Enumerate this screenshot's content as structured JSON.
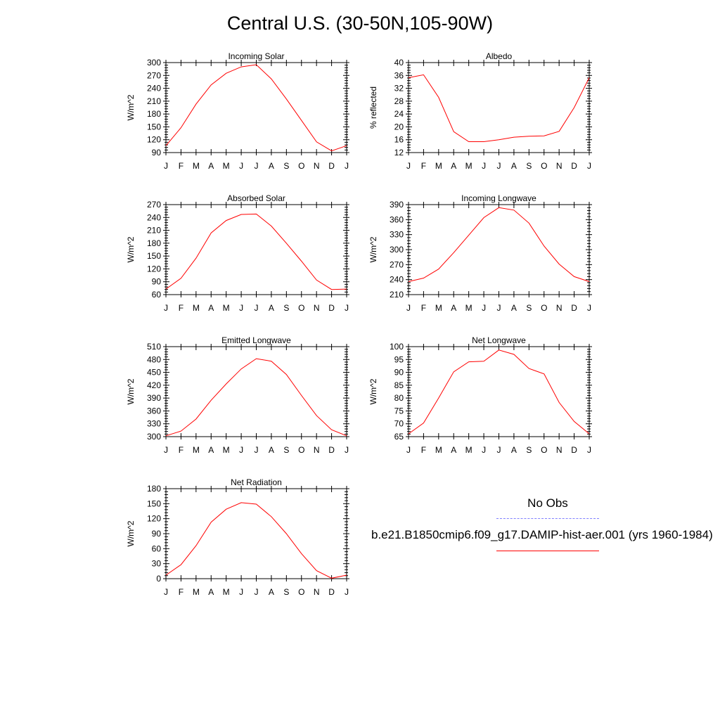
{
  "page": {
    "title": "Central U.S. (30-50N,105-90W)"
  },
  "legend": {
    "obs_label": "No Obs",
    "model_label": "b.e21.B1850cmip6.f09_g17.DAMIP-hist-aer.001 (yrs 1960-1984)",
    "obs_color": "#8080ff",
    "model_color": "#ff0000"
  },
  "colors": {
    "series": "#ff0000",
    "axes": "#000000"
  },
  "months": [
    "J",
    "F",
    "M",
    "A",
    "M",
    "J",
    "J",
    "A",
    "S",
    "O",
    "N",
    "D",
    "J"
  ],
  "chart_data": [
    {
      "type": "line",
      "title": "Incoming Solar",
      "ylabel": "W/m^2",
      "ylim": [
        90,
        300
      ],
      "yticks": [
        90,
        120,
        150,
        180,
        210,
        240,
        270,
        300
      ],
      "x": [
        "J",
        "F",
        "M",
        "A",
        "M",
        "J",
        "J",
        "A",
        "S",
        "O",
        "N",
        "D",
        "J"
      ],
      "series": [
        {
          "values": [
            106,
            148,
            203,
            248,
            275,
            290,
            295,
            262,
            215,
            165,
            115,
            94,
            106
          ]
        }
      ]
    },
    {
      "type": "line",
      "title": "Albedo",
      "ylabel": "% reflected",
      "ylim": [
        12,
        40
      ],
      "yticks": [
        12,
        16,
        20,
        24,
        28,
        32,
        36,
        40
      ],
      "x": [
        "J",
        "F",
        "M",
        "A",
        "M",
        "J",
        "J",
        "A",
        "S",
        "O",
        "N",
        "D",
        "J"
      ],
      "series": [
        {
          "values": [
            35.3,
            36.2,
            29.2,
            18.5,
            15.4,
            15.4,
            16.0,
            16.8,
            17.1,
            17.2,
            18.6,
            26.0,
            35.3
          ]
        }
      ]
    },
    {
      "type": "line",
      "title": "Absorbed Solar",
      "ylabel": "W/m^2",
      "ylim": [
        60,
        270
      ],
      "yticks": [
        60,
        90,
        120,
        150,
        180,
        210,
        240,
        270
      ],
      "x": [
        "J",
        "F",
        "M",
        "A",
        "M",
        "J",
        "J",
        "A",
        "S",
        "O",
        "N",
        "D",
        "J"
      ],
      "series": [
        {
          "values": [
            73,
            98,
            145,
            204,
            233,
            247,
            248,
            220,
            180,
            138,
            94,
            72,
            73
          ]
        }
      ]
    },
    {
      "type": "line",
      "title": "Incoming Longwave",
      "ylabel": "W/m^2",
      "ylim": [
        210,
        390
      ],
      "yticks": [
        210,
        240,
        270,
        300,
        330,
        360,
        390
      ],
      "x": [
        "J",
        "F",
        "M",
        "A",
        "M",
        "J",
        "J",
        "A",
        "S",
        "O",
        "N",
        "D",
        "J"
      ],
      "series": [
        {
          "values": [
            236,
            243,
            261,
            294,
            329,
            364,
            384,
            379,
            353,
            307,
            271,
            246,
            236
          ]
        }
      ]
    },
    {
      "type": "line",
      "title": "Emitted Longwave",
      "ylabel": "W/m^2",
      "ylim": [
        300,
        510
      ],
      "yticks": [
        300,
        330,
        360,
        390,
        420,
        450,
        480,
        510
      ],
      "x": [
        "J",
        "F",
        "M",
        "A",
        "M",
        "J",
        "J",
        "A",
        "S",
        "O",
        "N",
        "D",
        "J"
      ],
      "series": [
        {
          "values": [
            302,
            313,
            341,
            385,
            423,
            458,
            482,
            476,
            445,
            396,
            349,
            316,
            302
          ]
        }
      ]
    },
    {
      "type": "line",
      "title": "Net Longwave",
      "ylabel": "W/m^2",
      "ylim": [
        65,
        100
      ],
      "yticks": [
        65,
        70,
        75,
        80,
        85,
        90,
        95,
        100
      ],
      "x": [
        "J",
        "F",
        "M",
        "A",
        "M",
        "J",
        "J",
        "A",
        "S",
        "O",
        "N",
        "D",
        "J"
      ],
      "series": [
        {
          "values": [
            66.1,
            70.3,
            80.0,
            90.2,
            94.1,
            94.3,
            98.7,
            97.0,
            91.5,
            89.4,
            78.3,
            70.9,
            66.1
          ]
        }
      ]
    },
    {
      "type": "line",
      "title": "Net Radiation",
      "ylabel": "W/m^2",
      "ylim": [
        0,
        180
      ],
      "yticks": [
        0,
        30,
        60,
        90,
        120,
        150,
        180
      ],
      "x": [
        "J",
        "F",
        "M",
        "A",
        "M",
        "J",
        "J",
        "A",
        "S",
        "O",
        "N",
        "D",
        "J"
      ],
      "series": [
        {
          "values": [
            7,
            28,
            66,
            113,
            139,
            152,
            149,
            124,
            90,
            50,
            16,
            1,
            7
          ]
        }
      ]
    }
  ]
}
